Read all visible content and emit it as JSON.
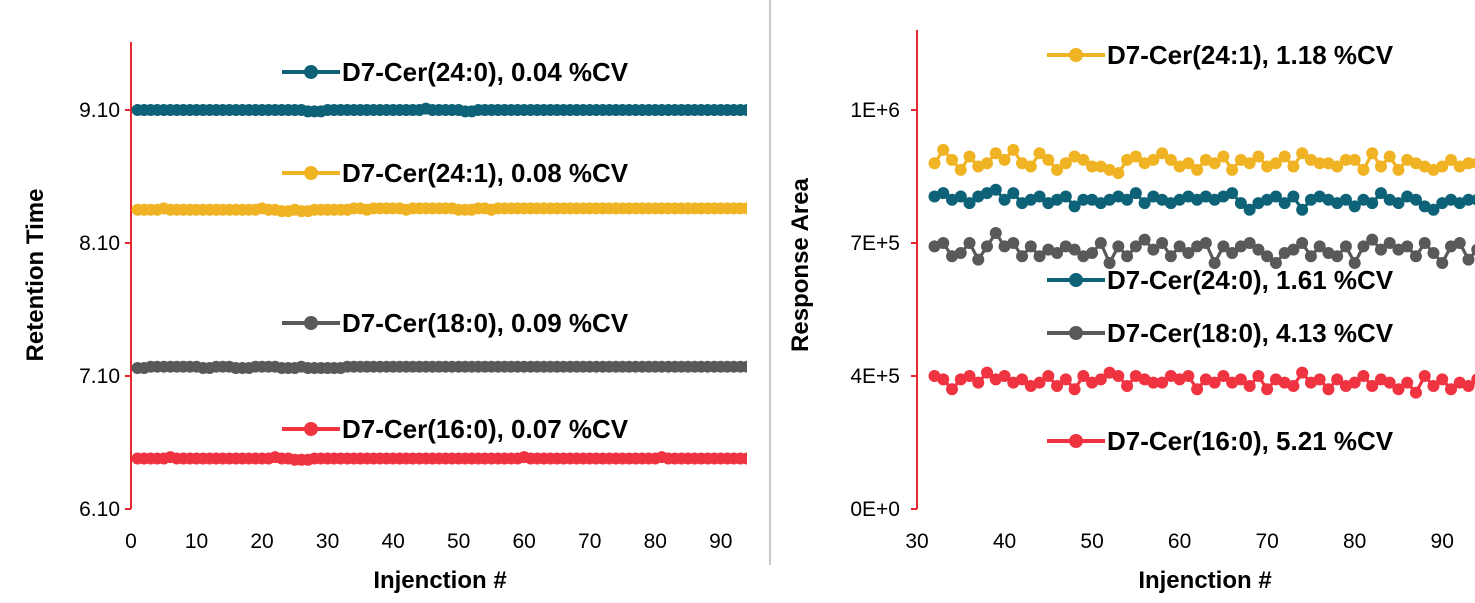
{
  "chart_data": [
    {
      "type": "line",
      "xlabel": "Injenction #",
      "ylabel": "Retention Time",
      "xlim": [
        0,
        94
      ],
      "ylim": [
        6.1,
        9.1
      ],
      "x_ticks": [
        "0",
        "10",
        "20",
        "30",
        "40",
        "50",
        "60",
        "70",
        "80",
        "90"
      ],
      "y_ticks": [
        "6.10",
        "7.10",
        "8.10",
        "9.10"
      ],
      "x": [
        1,
        2,
        3,
        4,
        5,
        6,
        7,
        8,
        9,
        10,
        11,
        12,
        13,
        14,
        15,
        16,
        17,
        18,
        19,
        20,
        21,
        22,
        23,
        24,
        25,
        26,
        27,
        28,
        29,
        30,
        31,
        32,
        33,
        34,
        35,
        36,
        37,
        38,
        39,
        40,
        41,
        42,
        43,
        44,
        45,
        46,
        47,
        48,
        49,
        50,
        51,
        52,
        53,
        54,
        55,
        56,
        57,
        58,
        59,
        60,
        61,
        62,
        63,
        64,
        65,
        66,
        67,
        68,
        69,
        70,
        71,
        72,
        73,
        74,
        75,
        76,
        77,
        78,
        79,
        80,
        81,
        82,
        83,
        84,
        85,
        86,
        87,
        88,
        89,
        90,
        91,
        92,
        93,
        94
      ],
      "series": [
        {
          "name": "D7-Cer(24:0),  0.04 %CV",
          "color": "#0e6277",
          "values": [
            9.1,
            9.1,
            9.1,
            9.1,
            9.1,
            9.1,
            9.1,
            9.1,
            9.1,
            9.1,
            9.1,
            9.1,
            9.1,
            9.1,
            9.1,
            9.1,
            9.1,
            9.1,
            9.1,
            9.1,
            9.1,
            9.1,
            9.1,
            9.1,
            9.1,
            9.1,
            9.09,
            9.09,
            9.09,
            9.1,
            9.1,
            9.1,
            9.1,
            9.1,
            9.1,
            9.1,
            9.1,
            9.1,
            9.1,
            9.1,
            9.1,
            9.1,
            9.1,
            9.1,
            9.11,
            9.1,
            9.1,
            9.1,
            9.1,
            9.1,
            9.09,
            9.09,
            9.1,
            9.1,
            9.1,
            9.1,
            9.1,
            9.1,
            9.1,
            9.1,
            9.1,
            9.1,
            9.1,
            9.1,
            9.1,
            9.1,
            9.1,
            9.1,
            9.1,
            9.1,
            9.1,
            9.1,
            9.1,
            9.1,
            9.1,
            9.1,
            9.1,
            9.1,
            9.1,
            9.1,
            9.1,
            9.1,
            9.1,
            9.1,
            9.1,
            9.1,
            9.1,
            9.1,
            9.1,
            9.1,
            9.1,
            9.1,
            9.1,
            9.1
          ]
        },
        {
          "name": "D7-Cer(24:1),  0.08 %CV",
          "color": "#f0b323",
          "values": [
            8.35,
            8.35,
            8.35,
            8.35,
            8.36,
            8.35,
            8.35,
            8.35,
            8.35,
            8.35,
            8.35,
            8.35,
            8.35,
            8.35,
            8.35,
            8.35,
            8.35,
            8.35,
            8.35,
            8.36,
            8.35,
            8.35,
            8.34,
            8.34,
            8.35,
            8.34,
            8.34,
            8.35,
            8.35,
            8.35,
            8.35,
            8.35,
            8.35,
            8.36,
            8.36,
            8.35,
            8.36,
            8.36,
            8.36,
            8.36,
            8.36,
            8.35,
            8.36,
            8.36,
            8.36,
            8.36,
            8.36,
            8.36,
            8.36,
            8.35,
            8.35,
            8.35,
            8.36,
            8.36,
            8.35,
            8.36,
            8.36,
            8.36,
            8.36,
            8.36,
            8.36,
            8.36,
            8.36,
            8.36,
            8.36,
            8.36,
            8.36,
            8.36,
            8.36,
            8.36,
            8.36,
            8.36,
            8.36,
            8.36,
            8.36,
            8.36,
            8.36,
            8.36,
            8.36,
            8.36,
            8.36,
            8.36,
            8.36,
            8.36,
            8.36,
            8.36,
            8.36,
            8.36,
            8.36,
            8.36,
            8.36,
            8.36,
            8.36,
            8.36
          ]
        },
        {
          "name": "D7-Cer(18:0),  0.09 %CV",
          "color": "#595959",
          "values": [
            7.16,
            7.16,
            7.17,
            7.17,
            7.17,
            7.17,
            7.17,
            7.17,
            7.17,
            7.17,
            7.16,
            7.16,
            7.17,
            7.17,
            7.17,
            7.16,
            7.16,
            7.16,
            7.17,
            7.17,
            7.17,
            7.17,
            7.16,
            7.16,
            7.16,
            7.17,
            7.16,
            7.16,
            7.16,
            7.16,
            7.16,
            7.16,
            7.17,
            7.17,
            7.17,
            7.17,
            7.17,
            7.17,
            7.17,
            7.17,
            7.17,
            7.17,
            7.17,
            7.17,
            7.17,
            7.17,
            7.17,
            7.17,
            7.17,
            7.17,
            7.17,
            7.17,
            7.17,
            7.17,
            7.17,
            7.17,
            7.17,
            7.17,
            7.17,
            7.17,
            7.17,
            7.17,
            7.17,
            7.17,
            7.17,
            7.17,
            7.17,
            7.17,
            7.17,
            7.17,
            7.17,
            7.17,
            7.17,
            7.17,
            7.17,
            7.17,
            7.17,
            7.17,
            7.17,
            7.17,
            7.17,
            7.17,
            7.17,
            7.17,
            7.17,
            7.17,
            7.17,
            7.17,
            7.17,
            7.17,
            7.17,
            7.17,
            7.17,
            7.17
          ]
        },
        {
          "name": "D7-Cer(16:0),  0.07 %CV",
          "color": "#ef3340",
          "values": [
            6.48,
            6.48,
            6.48,
            6.48,
            6.48,
            6.49,
            6.48,
            6.48,
            6.48,
            6.48,
            6.48,
            6.48,
            6.48,
            6.48,
            6.48,
            6.48,
            6.48,
            6.48,
            6.48,
            6.48,
            6.48,
            6.49,
            6.48,
            6.48,
            6.47,
            6.47,
            6.47,
            6.48,
            6.48,
            6.48,
            6.48,
            6.48,
            6.48,
            6.48,
            6.48,
            6.48,
            6.48,
            6.48,
            6.48,
            6.48,
            6.48,
            6.48,
            6.48,
            6.48,
            6.48,
            6.48,
            6.48,
            6.48,
            6.48,
            6.48,
            6.48,
            6.48,
            6.48,
            6.48,
            6.48,
            6.48,
            6.48,
            6.48,
            6.48,
            6.49,
            6.48,
            6.48,
            6.48,
            6.48,
            6.48,
            6.48,
            6.48,
            6.48,
            6.48,
            6.48,
            6.48,
            6.48,
            6.48,
            6.48,
            6.48,
            6.48,
            6.48,
            6.48,
            6.48,
            6.48,
            6.49,
            6.48,
            6.48,
            6.48,
            6.48,
            6.48,
            6.48,
            6.48,
            6.48,
            6.48,
            6.48,
            6.48,
            6.48,
            6.48
          ]
        }
      ]
    },
    {
      "type": "line",
      "xlabel": "Injenction #",
      "ylabel": "Response Area",
      "xlim": [
        30,
        95
      ],
      "ylim": [
        0,
        1200000
      ],
      "x_ticks": [
        "30",
        "40",
        "50",
        "60",
        "70",
        "80",
        "90"
      ],
      "y_ticks": [
        "0E+0",
        "4E+5",
        "7E+5",
        "1E+6"
      ],
      "x": [
        32,
        33,
        34,
        35,
        36,
        37,
        38,
        39,
        40,
        41,
        42,
        43,
        44,
        45,
        46,
        47,
        48,
        49,
        50,
        51,
        52,
        53,
        54,
        55,
        56,
        57,
        58,
        59,
        60,
        61,
        62,
        63,
        64,
        65,
        66,
        67,
        68,
        69,
        70,
        71,
        72,
        73,
        74,
        75,
        76,
        77,
        78,
        79,
        80,
        81,
        82,
        83,
        84,
        85,
        86,
        87,
        88,
        89,
        90,
        91,
        92,
        93,
        94,
        95
      ],
      "series": [
        {
          "name": "D7-Cer(24:1),  1.18 %CV",
          "color": "#f0b323",
          "values": [
            1040000,
            1080000,
            1050000,
            1020000,
            1060000,
            1030000,
            1040000,
            1070000,
            1050000,
            1080000,
            1040000,
            1030000,
            1070000,
            1050000,
            1020000,
            1040000,
            1060000,
            1050000,
            1030000,
            1030000,
            1020000,
            1010000,
            1050000,
            1060000,
            1040000,
            1050000,
            1070000,
            1050000,
            1030000,
            1040000,
            1020000,
            1050000,
            1040000,
            1060000,
            1020000,
            1050000,
            1040000,
            1060000,
            1030000,
            1040000,
            1060000,
            1030000,
            1070000,
            1050000,
            1040000,
            1040000,
            1030000,
            1050000,
            1050000,
            1020000,
            1070000,
            1030000,
            1060000,
            1020000,
            1050000,
            1040000,
            1030000,
            1020000,
            1030000,
            1050000,
            1030000,
            1040000,
            1040000,
            1030000
          ]
        },
        {
          "name": "D7-Cer(24:0), 1.61 %CV",
          "color": "#0e6277",
          "values": [
            940000,
            950000,
            930000,
            940000,
            920000,
            940000,
            950000,
            960000,
            930000,
            950000,
            920000,
            930000,
            940000,
            920000,
            930000,
            940000,
            910000,
            930000,
            930000,
            920000,
            930000,
            940000,
            930000,
            950000,
            920000,
            940000,
            930000,
            920000,
            930000,
            940000,
            930000,
            940000,
            930000,
            940000,
            950000,
            920000,
            900000,
            920000,
            930000,
            940000,
            920000,
            940000,
            900000,
            930000,
            940000,
            930000,
            920000,
            930000,
            910000,
            930000,
            920000,
            950000,
            930000,
            920000,
            940000,
            930000,
            910000,
            900000,
            920000,
            930000,
            920000,
            930000,
            930000,
            920000
          ]
        },
        {
          "name": "D7-Cer(18:0),  4.13 %CV",
          "color": "#595959",
          "values": [
            790000,
            800000,
            760000,
            770000,
            800000,
            750000,
            790000,
            830000,
            790000,
            800000,
            760000,
            790000,
            760000,
            780000,
            770000,
            790000,
            780000,
            760000,
            770000,
            800000,
            740000,
            790000,
            760000,
            790000,
            810000,
            780000,
            800000,
            760000,
            790000,
            770000,
            790000,
            800000,
            740000,
            790000,
            770000,
            790000,
            800000,
            780000,
            760000,
            740000,
            770000,
            780000,
            800000,
            760000,
            790000,
            770000,
            760000,
            790000,
            740000,
            790000,
            810000,
            780000,
            800000,
            780000,
            790000,
            760000,
            800000,
            770000,
            740000,
            790000,
            800000,
            750000,
            780000,
            720000
          ]
        },
        {
          "name": "D7-Cer(16:0),  5.21 %CV",
          "color": "#ef3340",
          "values": [
            400000,
            390000,
            360000,
            390000,
            400000,
            380000,
            410000,
            390000,
            400000,
            380000,
            390000,
            370000,
            380000,
            400000,
            370000,
            390000,
            360000,
            400000,
            380000,
            390000,
            410000,
            400000,
            370000,
            400000,
            390000,
            380000,
            380000,
            400000,
            390000,
            400000,
            360000,
            390000,
            380000,
            400000,
            380000,
            390000,
            370000,
            400000,
            360000,
            390000,
            380000,
            370000,
            410000,
            380000,
            390000,
            360000,
            390000,
            370000,
            380000,
            400000,
            370000,
            390000,
            380000,
            360000,
            380000,
            350000,
            400000,
            370000,
            390000,
            360000,
            380000,
            370000,
            390000,
            400000
          ]
        }
      ]
    }
  ]
}
